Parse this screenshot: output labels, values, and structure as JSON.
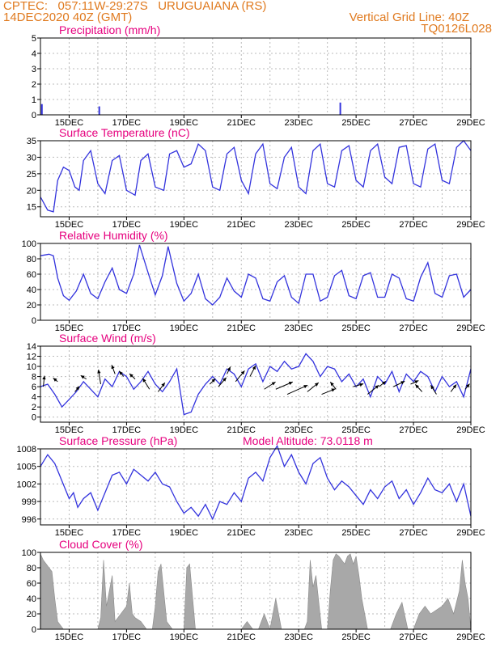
{
  "header": {
    "line1": "CPTEC:   057:11W-29:27S   URUGUAIANA (RS)",
    "line2": "14DEC2020 40Z (GMT)",
    "grid_note": "Vertical Grid Line: 40Z",
    "code": "TQ0126L028"
  },
  "colors": {
    "header": "#e07a1f",
    "title": "#e6007e",
    "line": "#3333dd",
    "bar": "#a8a8a8",
    "grid": "#bbbbbb"
  },
  "x_axis": {
    "start_day": 14,
    "end_day": 29,
    "ticks": [
      {
        "day": 15,
        "label": "15DEC"
      },
      {
        "day": 17,
        "label": "17DEC"
      },
      {
        "day": 19,
        "label": "19DEC"
      },
      {
        "day": 21,
        "label": "21DEC"
      },
      {
        "day": 23,
        "label": "23DEC"
      },
      {
        "day": 25,
        "label": "25DEC"
      },
      {
        "day": 27,
        "label": "27DEC"
      },
      {
        "day": 29,
        "label": "29DEC"
      }
    ]
  },
  "chart_data": [
    {
      "id": "precip",
      "type": "bar",
      "title": "Precipitation (mm/h)",
      "ylim": [
        0,
        5
      ],
      "yticks": [
        0,
        1,
        2,
        3,
        4,
        5
      ],
      "x": [
        14.05,
        16.05,
        24.45
      ],
      "values": [
        0.7,
        0.55,
        0.8
      ]
    },
    {
      "id": "temp",
      "type": "line",
      "title": "Surface Temperature (nC)",
      "ylim": [
        12,
        35
      ],
      "yticks": [
        15,
        20,
        25,
        30,
        35
      ],
      "x": [
        14.0,
        14.25,
        14.45,
        14.6,
        14.8,
        15.0,
        15.2,
        15.35,
        15.5,
        15.75,
        16.0,
        16.25,
        16.5,
        16.75,
        17.0,
        17.3,
        17.5,
        17.75,
        18.0,
        18.3,
        18.5,
        18.75,
        19.0,
        19.25,
        19.5,
        19.75,
        20.0,
        20.25,
        20.5,
        20.75,
        21.0,
        21.25,
        21.5,
        21.75,
        22.0,
        22.25,
        22.5,
        22.75,
        23.0,
        23.25,
        23.5,
        23.75,
        24.0,
        24.25,
        24.5,
        24.75,
        25.0,
        25.25,
        25.5,
        25.75,
        26.0,
        26.25,
        26.5,
        26.75,
        27.0,
        27.25,
        27.5,
        27.75,
        28.0,
        28.25,
        28.5,
        28.75,
        29.0
      ],
      "values": [
        18.0,
        14.0,
        13.5,
        23.0,
        27.0,
        26.0,
        21.0,
        20.0,
        29.0,
        32.0,
        22.0,
        19.0,
        29.0,
        30.5,
        20.0,
        18.5,
        29.0,
        31.0,
        21.0,
        20.0,
        31.0,
        32.0,
        27.0,
        28.0,
        34.0,
        32.0,
        21.0,
        20.0,
        31.0,
        33.0,
        23.0,
        19.0,
        31.0,
        34.0,
        22.0,
        20.5,
        30.0,
        33.0,
        21.0,
        19.0,
        32.0,
        34.0,
        22.0,
        21.0,
        32.0,
        33.5,
        23.0,
        21.0,
        32.0,
        34.0,
        24.0,
        22.0,
        33.0,
        33.5,
        22.0,
        21.0,
        32.5,
        34.0,
        23.0,
        22.0,
        33.0,
        35.0,
        32.0
      ]
    },
    {
      "id": "rh",
      "type": "line",
      "title": "Relative Humidity (%)",
      "ylim": [
        0,
        100
      ],
      "yticks": [
        0,
        20,
        40,
        60,
        80,
        100
      ],
      "x": [
        14.0,
        14.3,
        14.45,
        14.6,
        14.8,
        15.0,
        15.25,
        15.5,
        15.75,
        16.0,
        16.25,
        16.5,
        16.75,
        17.0,
        17.25,
        17.45,
        17.75,
        18.0,
        18.25,
        18.45,
        18.75,
        19.0,
        19.25,
        19.5,
        19.75,
        20.0,
        20.25,
        20.5,
        20.75,
        21.0,
        21.25,
        21.5,
        21.75,
        22.0,
        22.25,
        22.5,
        22.75,
        23.0,
        23.25,
        23.5,
        23.75,
        24.0,
        24.25,
        24.5,
        24.75,
        25.0,
        25.25,
        25.5,
        25.75,
        26.0,
        26.25,
        26.5,
        26.75,
        27.0,
        27.25,
        27.5,
        27.75,
        28.0,
        28.25,
        28.5,
        28.75,
        29.0
      ],
      "values": [
        84.0,
        86.0,
        84.0,
        55.0,
        32.0,
        26.0,
        38.0,
        60.0,
        35.0,
        28.0,
        50.0,
        68.0,
        40.0,
        35.0,
        60.0,
        98.0,
        62.0,
        33.0,
        58.0,
        96.0,
        48.0,
        25.0,
        35.0,
        60.0,
        28.0,
        20.0,
        30.0,
        55.0,
        38.0,
        30.0,
        60.0,
        55.0,
        28.0,
        25.0,
        50.0,
        58.0,
        30.0,
        22.0,
        60.0,
        60.0,
        25.0,
        30.0,
        58.0,
        65.0,
        32.0,
        28.0,
        58.0,
        62.0,
        30.0,
        30.0,
        60.0,
        55.0,
        28.0,
        25.0,
        56.0,
        75.0,
        35.0,
        30.0,
        58.0,
        60.0,
        30.0,
        40.0
      ]
    },
    {
      "id": "wind",
      "type": "line",
      "title": "Surface Wind (m/s)",
      "ylim": [
        -1,
        14
      ],
      "yticks": [
        0,
        2,
        4,
        6,
        8,
        10,
        12,
        14
      ],
      "x": [
        14.0,
        14.25,
        14.5,
        14.75,
        15.0,
        15.25,
        15.5,
        15.75,
        16.0,
        16.25,
        16.5,
        16.75,
        17.0,
        17.25,
        17.5,
        17.75,
        18.0,
        18.25,
        18.5,
        18.75,
        19.0,
        19.25,
        19.5,
        19.75,
        20.0,
        20.25,
        20.5,
        20.75,
        21.0,
        21.25,
        21.5,
        21.75,
        22.0,
        22.25,
        22.5,
        22.75,
        23.0,
        23.25,
        23.5,
        23.75,
        24.0,
        24.25,
        24.5,
        24.75,
        25.0,
        25.25,
        25.5,
        25.75,
        26.0,
        26.25,
        26.5,
        26.75,
        27.0,
        27.25,
        27.5,
        27.75,
        28.0,
        28.25,
        28.5,
        28.75,
        29.0
      ],
      "values": [
        6.0,
        6.5,
        4.5,
        2.0,
        3.5,
        5.0,
        7.0,
        5.5,
        4.0,
        7.5,
        6.0,
        9.0,
        8.0,
        5.5,
        7.0,
        9.0,
        6.5,
        5.0,
        7.0,
        9.5,
        0.5,
        1.0,
        4.5,
        6.5,
        8.0,
        6.5,
        9.5,
        8.5,
        6.0,
        9.5,
        10.5,
        7.0,
        10.0,
        9.0,
        11.0,
        9.5,
        10.0,
        12.5,
        11.0,
        8.0,
        10.0,
        9.5,
        7.0,
        8.5,
        6.0,
        7.5,
        4.0,
        8.0,
        6.5,
        9.0,
        5.0,
        8.5,
        7.0,
        9.0,
        8.0,
        5.0,
        8.0,
        6.0,
        7.0,
        4.0,
        9.5
      ],
      "vectors": [
        {
          "x": 14.1,
          "y": 6.0,
          "dx": 0.1,
          "dy": 3.0
        },
        {
          "x": 14.6,
          "y": 7.0,
          "dx": -0.4,
          "dy": 1.0
        },
        {
          "x": 15.2,
          "y": 5.0,
          "dx": 0.4,
          "dy": 1.5
        },
        {
          "x": 15.6,
          "y": 7.5,
          "dx": -0.5,
          "dy": 1.0
        },
        {
          "x": 16.1,
          "y": 6.5,
          "dx": -0.2,
          "dy": 4.0
        },
        {
          "x": 16.6,
          "y": 8.5,
          "dx": -0.3,
          "dy": 2.5
        },
        {
          "x": 16.9,
          "y": 8.0,
          "dx": -0.4,
          "dy": 1.5
        },
        {
          "x": 17.3,
          "y": 7.5,
          "dx": -0.5,
          "dy": 1.5
        },
        {
          "x": 17.8,
          "y": 5.5,
          "dx": -0.6,
          "dy": 3.0
        },
        {
          "x": 18.1,
          "y": 5.0,
          "dx": 0.6,
          "dy": 2.5
        },
        {
          "x": 19.9,
          "y": 6.5,
          "dx": 0.5,
          "dy": 1.5
        },
        {
          "x": 20.2,
          "y": 6.0,
          "dx": 0.7,
          "dy": 2.5
        },
        {
          "x": 20.5,
          "y": 8.5,
          "dx": 0.3,
          "dy": 2.0
        },
        {
          "x": 20.8,
          "y": 7.0,
          "dx": 0.8,
          "dy": 3.0
        },
        {
          "x": 21.3,
          "y": 8.0,
          "dx": 0.5,
          "dy": 3.0
        },
        {
          "x": 21.8,
          "y": 5.5,
          "dx": 1.0,
          "dy": 2.0
        },
        {
          "x": 22.2,
          "y": 5.5,
          "dx": 1.5,
          "dy": 2.0
        },
        {
          "x": 22.6,
          "y": 4.5,
          "dx": 1.8,
          "dy": 2.5
        },
        {
          "x": 23.3,
          "y": 5.0,
          "dx": 1.0,
          "dy": 2.5
        },
        {
          "x": 23.8,
          "y": 4.5,
          "dx": 1.2,
          "dy": 1.5
        },
        {
          "x": 24.3,
          "y": 5.5,
          "dx": -0.5,
          "dy": 2.0
        },
        {
          "x": 24.9,
          "y": 6.0,
          "dx": 0.9,
          "dy": 0.8
        },
        {
          "x": 25.4,
          "y": 4.5,
          "dx": 1.0,
          "dy": 2.5
        },
        {
          "x": 25.8,
          "y": 6.0,
          "dx": 0.6,
          "dy": 1.5
        },
        {
          "x": 26.3,
          "y": 6.0,
          "dx": 1.0,
          "dy": 1.5
        },
        {
          "x": 26.9,
          "y": 6.5,
          "dx": 0.7,
          "dy": 1.0
        },
        {
          "x": 27.3,
          "y": 5.0,
          "dx": -0.6,
          "dy": 2.0
        },
        {
          "x": 27.8,
          "y": 4.5,
          "dx": -0.5,
          "dy": 2.5
        },
        {
          "x": 28.3,
          "y": 5.0,
          "dx": 0.5,
          "dy": 2.0
        },
        {
          "x": 28.8,
          "y": 5.5,
          "dx": 0.4,
          "dy": 1.5
        }
      ]
    },
    {
      "id": "pressure",
      "type": "line",
      "title": "Surface Pressure (hPa)",
      "subtitle": "Model Altitude: 73.0118 m",
      "ylim": [
        995,
        1008
      ],
      "yticks": [
        996,
        999,
        1002,
        1005,
        1008
      ],
      "x": [
        14.0,
        14.25,
        14.5,
        14.75,
        15.0,
        15.15,
        15.3,
        15.5,
        15.75,
        16.0,
        16.25,
        16.5,
        16.75,
        17.0,
        17.25,
        17.5,
        17.75,
        18.0,
        18.25,
        18.5,
        18.75,
        19.0,
        19.25,
        19.5,
        19.75,
        20.0,
        20.25,
        20.5,
        20.75,
        21.0,
        21.25,
        21.5,
        21.75,
        22.0,
        22.25,
        22.5,
        22.75,
        23.0,
        23.25,
        23.5,
        23.75,
        24.0,
        24.25,
        24.5,
        24.75,
        25.0,
        25.25,
        25.5,
        25.75,
        26.0,
        26.25,
        26.5,
        26.75,
        27.0,
        27.25,
        27.5,
        27.75,
        28.0,
        28.25,
        28.5,
        28.75,
        29.0
      ],
      "values": [
        1005.0,
        1007.0,
        1005.5,
        1002.5,
        999.5,
        1000.5,
        998.0,
        999.5,
        1000.5,
        997.5,
        1000.5,
        1003.5,
        1004.0,
        1002.0,
        1004.5,
        1003.5,
        1002.5,
        1004.0,
        1002.0,
        1001.5,
        999.0,
        997.0,
        998.0,
        996.5,
        998.5,
        996.0,
        999.0,
        998.5,
        1000.5,
        999.0,
        1003.0,
        1004.0,
        1002.5,
        1006.5,
        1008.5,
        1005.0,
        1007.0,
        1004.0,
        1002.0,
        1005.5,
        1006.5,
        1003.0,
        1001.0,
        1002.5,
        1001.5,
        1000.0,
        998.5,
        1001.0,
        999.5,
        1001.5,
        1002.5,
        999.5,
        1001.0,
        998.5,
        1000.5,
        1003.0,
        1001.0,
        1000.5,
        1002.0,
        999.0,
        1002.0,
        996.5
      ]
    },
    {
      "id": "cloud",
      "type": "area",
      "title": "Cloud Cover (%)",
      "ylim": [
        0,
        100
      ],
      "yticks": [
        0,
        20,
        40,
        60,
        80,
        100
      ],
      "x": [
        14.0,
        14.1,
        14.2,
        14.3,
        14.4,
        14.5,
        14.6,
        14.8,
        15.0,
        15.2,
        15.4,
        15.6,
        15.8,
        16.0,
        16.1,
        16.2,
        16.3,
        16.5,
        16.6,
        16.8,
        17.0,
        17.1,
        17.2,
        17.3,
        17.5,
        17.7,
        17.9,
        18.0,
        18.1,
        18.2,
        18.4,
        18.6,
        18.8,
        19.0,
        19.1,
        19.2,
        19.4,
        19.6,
        19.8,
        20.0,
        20.2,
        20.4,
        20.6,
        20.8,
        21.0,
        21.2,
        21.4,
        21.6,
        21.8,
        22.0,
        22.2,
        22.4,
        22.6,
        22.8,
        23.0,
        23.2,
        23.3,
        23.4,
        23.5,
        23.6,
        23.8,
        24.0,
        24.1,
        24.2,
        24.3,
        24.4,
        24.5,
        24.6,
        24.7,
        24.8,
        24.9,
        25.0,
        25.1,
        25.2,
        25.4,
        25.6,
        25.8,
        26.0,
        26.2,
        26.4,
        26.6,
        26.8,
        27.0,
        27.2,
        27.4,
        27.6,
        27.8,
        28.0,
        28.2,
        28.4,
        28.6,
        28.7,
        28.8,
        28.9,
        29.0
      ],
      "values": [
        98,
        90,
        85,
        80,
        75,
        40,
        10,
        0,
        0,
        0,
        0,
        0,
        0,
        0,
        15,
        90,
        30,
        70,
        10,
        20,
        30,
        60,
        20,
        15,
        10,
        0,
        0,
        30,
        75,
        85,
        10,
        0,
        0,
        0,
        80,
        85,
        0,
        0,
        0,
        0,
        0,
        0,
        0,
        0,
        0,
        10,
        0,
        0,
        20,
        0,
        40,
        0,
        0,
        0,
        0,
        0,
        10,
        90,
        55,
        70,
        0,
        0,
        50,
        90,
        98,
        95,
        90,
        85,
        95,
        98,
        85,
        95,
        70,
        40,
        0,
        0,
        0,
        0,
        0,
        20,
        35,
        0,
        0,
        20,
        30,
        20,
        25,
        30,
        40,
        20,
        50,
        90,
        60,
        40,
        0
      ]
    }
  ]
}
